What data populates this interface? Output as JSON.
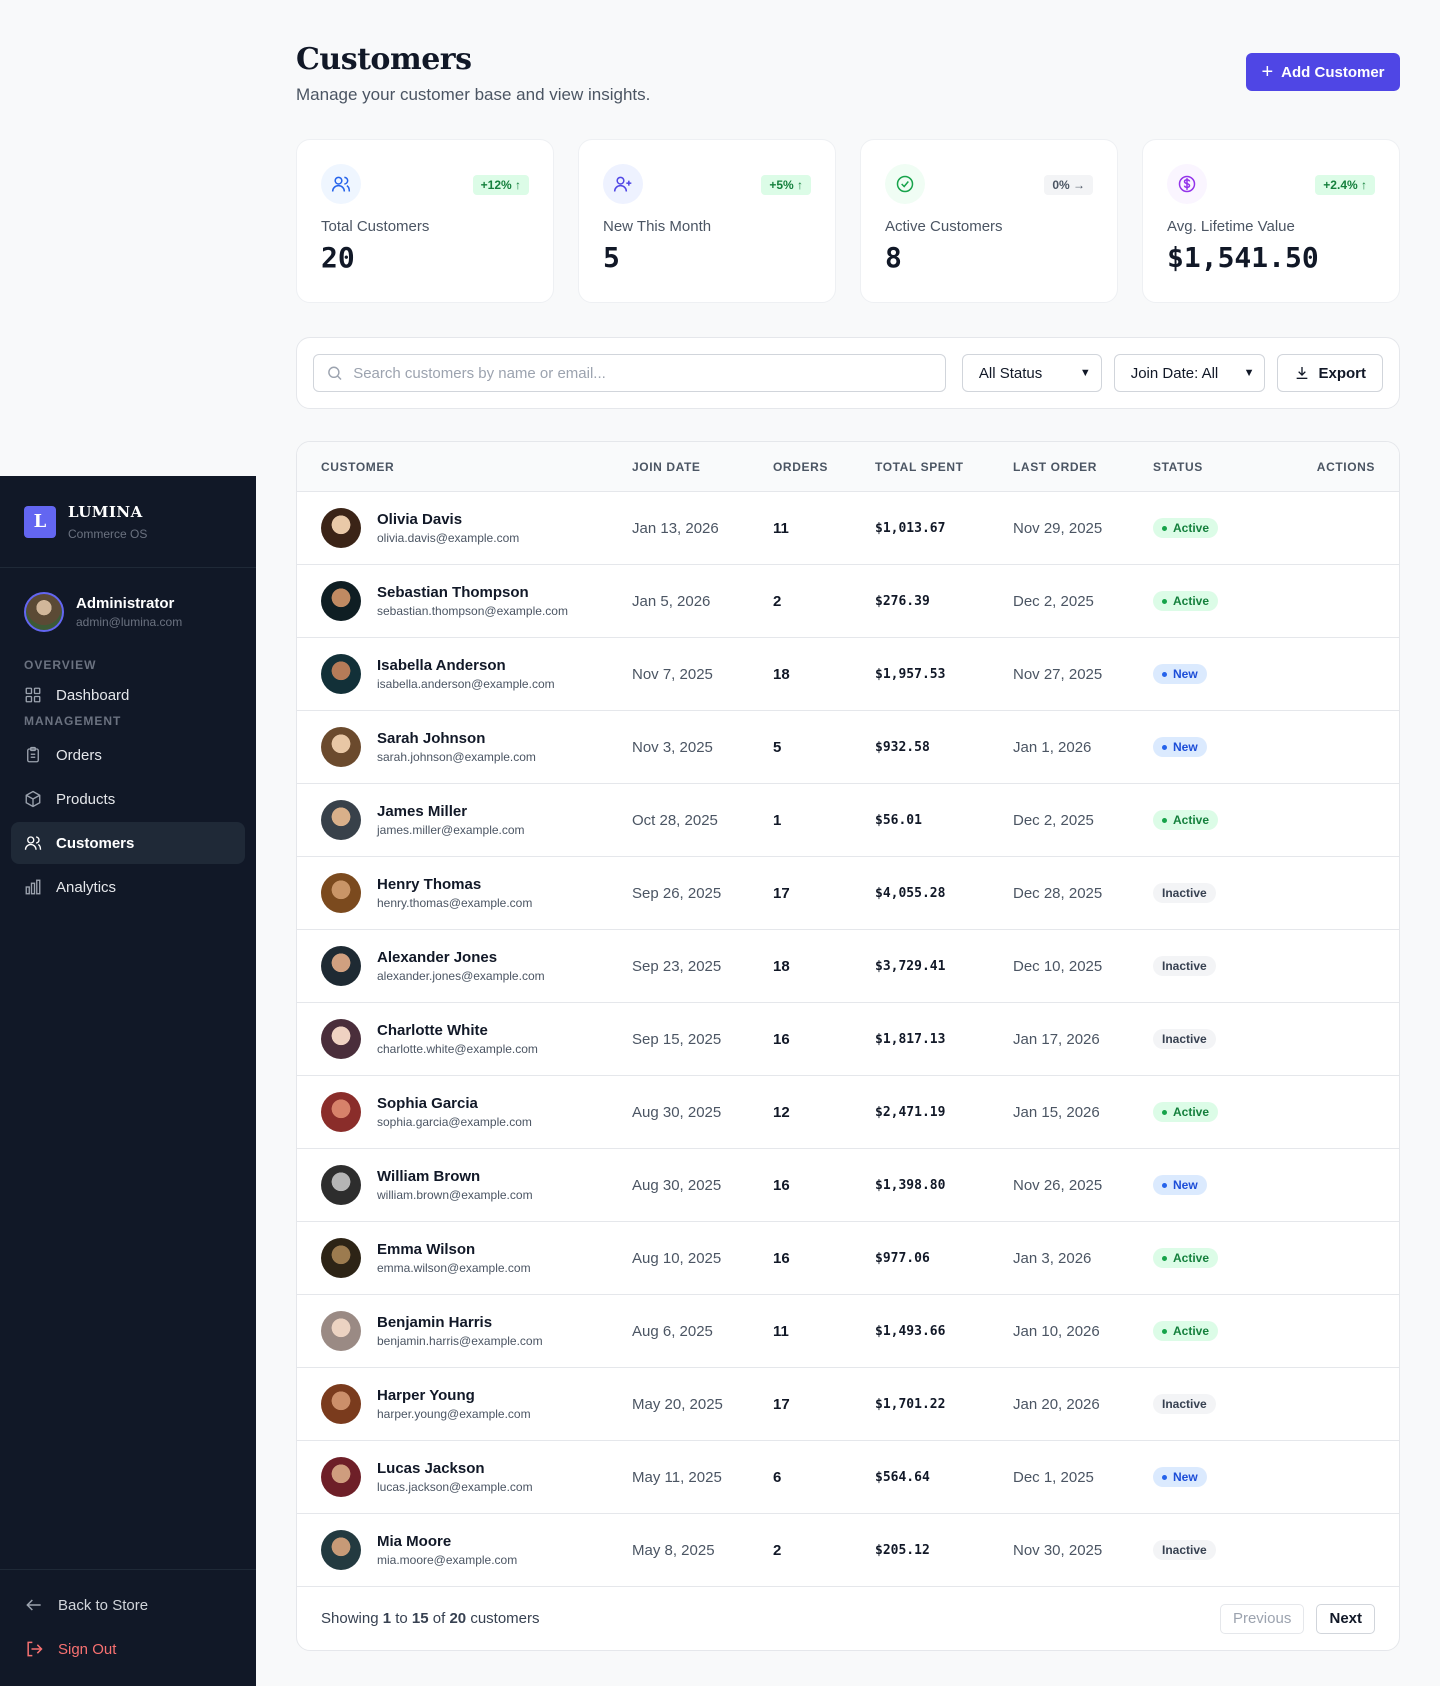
{
  "brand": {
    "logo_letter": "L",
    "name": "LUMINA",
    "sub": "Commerce OS"
  },
  "user": {
    "name": "Administrator",
    "email": "admin@lumina.com"
  },
  "nav": {
    "overview_label": "OVERVIEW",
    "management_label": "MANAGEMENT",
    "dashboard": "Dashboard",
    "orders": "Orders",
    "products": "Products",
    "customers": "Customers",
    "analytics": "Analytics",
    "back": "Back to Store",
    "signout": "Sign Out"
  },
  "header": {
    "title": "Customers",
    "subtitle": "Manage your customer base and view insights.",
    "add_label": "Add Customer"
  },
  "stats": [
    {
      "label": "Total Customers",
      "value": "20",
      "badge": "+12% ↑",
      "icon": "users-icon",
      "color": "#2563eb"
    },
    {
      "label": "New This Month",
      "value": "5",
      "badge": "+5% ↑",
      "icon": "user-plus-icon",
      "color": "#4f46e5"
    },
    {
      "label": "Active Customers",
      "value": "8",
      "badge": "0% →",
      "icon": "check-circle-icon",
      "color": "#16a34a"
    },
    {
      "label": "Avg. Lifetime Value",
      "value": "$1,541.50",
      "badge": "+2.4% ↑",
      "icon": "dollar-circle-icon",
      "color": "#9333ea"
    }
  ],
  "filters": {
    "search_placeholder": "Search customers by name or email...",
    "status_value": "All Status",
    "join_value": "Join Date: All",
    "export_label": "Export"
  },
  "table": {
    "headers": [
      "CUSTOMER",
      "JOIN DATE",
      "ORDERS",
      "TOTAL SPENT",
      "LAST ORDER",
      "STATUS",
      "ACTIONS"
    ],
    "rows": [
      {
        "name": "Olivia Davis",
        "email": "olivia.davis@example.com",
        "join": "Jan 13, 2026",
        "orders": "11",
        "spent": "$1,013.67",
        "last": "Nov 29, 2025",
        "status": "Active"
      },
      {
        "name": "Sebastian Thompson",
        "email": "sebastian.thompson@example.com",
        "join": "Jan 5, 2026",
        "orders": "2",
        "spent": "$276.39",
        "last": "Dec 2, 2025",
        "status": "Active"
      },
      {
        "name": "Isabella Anderson",
        "email": "isabella.anderson@example.com",
        "join": "Nov 7, 2025",
        "orders": "18",
        "spent": "$1,957.53",
        "last": "Nov 27, 2025",
        "status": "New"
      },
      {
        "name": "Sarah Johnson",
        "email": "sarah.johnson@example.com",
        "join": "Nov 3, 2025",
        "orders": "5",
        "spent": "$932.58",
        "last": "Jan 1, 2026",
        "status": "New"
      },
      {
        "name": "James Miller",
        "email": "james.miller@example.com",
        "join": "Oct 28, 2025",
        "orders": "1",
        "spent": "$56.01",
        "last": "Dec 2, 2025",
        "status": "Active"
      },
      {
        "name": "Henry Thomas",
        "email": "henry.thomas@example.com",
        "join": "Sep 26, 2025",
        "orders": "17",
        "spent": "$4,055.28",
        "last": "Dec 28, 2025",
        "status": "Inactive"
      },
      {
        "name": "Alexander Jones",
        "email": "alexander.jones@example.com",
        "join": "Sep 23, 2025",
        "orders": "18",
        "spent": "$3,729.41",
        "last": "Dec 10, 2025",
        "status": "Inactive"
      },
      {
        "name": "Charlotte White",
        "email": "charlotte.white@example.com",
        "join": "Sep 15, 2025",
        "orders": "16",
        "spent": "$1,817.13",
        "last": "Jan 17, 2026",
        "status": "Inactive"
      },
      {
        "name": "Sophia Garcia",
        "email": "sophia.garcia@example.com",
        "join": "Aug 30, 2025",
        "orders": "12",
        "spent": "$2,471.19",
        "last": "Jan 15, 2026",
        "status": "Active"
      },
      {
        "name": "William Brown",
        "email": "william.brown@example.com",
        "join": "Aug 30, 2025",
        "orders": "16",
        "spent": "$1,398.80",
        "last": "Nov 26, 2025",
        "status": "New"
      },
      {
        "name": "Emma Wilson",
        "email": "emma.wilson@example.com",
        "join": "Aug 10, 2025",
        "orders": "16",
        "spent": "$977.06",
        "last": "Jan 3, 2026",
        "status": "Active"
      },
      {
        "name": "Benjamin Harris",
        "email": "benjamin.harris@example.com",
        "join": "Aug 6, 2025",
        "orders": "11",
        "spent": "$1,493.66",
        "last": "Jan 10, 2026",
        "status": "Active"
      },
      {
        "name": "Harper Young",
        "email": "harper.young@example.com",
        "join": "May 20, 2025",
        "orders": "17",
        "spent": "$1,701.22",
        "last": "Jan 20, 2026",
        "status": "Inactive"
      },
      {
        "name": "Lucas Jackson",
        "email": "lucas.jackson@example.com",
        "join": "May 11, 2025",
        "orders": "6",
        "spent": "$564.64",
        "last": "Dec 1, 2025",
        "status": "New"
      },
      {
        "name": "Mia Moore",
        "email": "mia.moore@example.com",
        "join": "May 8, 2025",
        "orders": "2",
        "spent": "$205.12",
        "last": "Nov 30, 2025",
        "status": "Inactive"
      }
    ]
  },
  "footer": {
    "prefix": "Showing ",
    "from": "1",
    "mid1": " to ",
    "to": "15",
    "mid2": " of ",
    "total": "20",
    "suffix": " customers",
    "prev": "Previous",
    "next": "Next"
  }
}
